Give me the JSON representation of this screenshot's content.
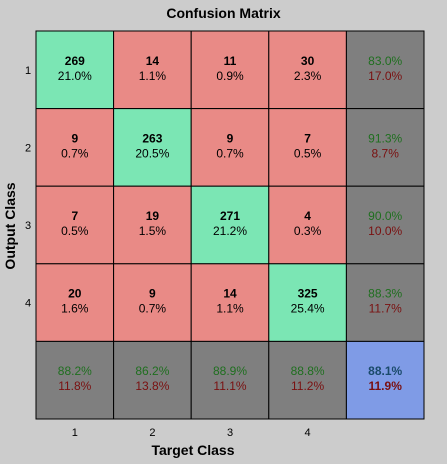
{
  "chart_data": {
    "type": "heatmap",
    "title": "Confusion Matrix",
    "xlabel": "Target Class",
    "ylabel": "Output Class",
    "x_ticks": [
      "1",
      "2",
      "3",
      "4"
    ],
    "y_ticks": [
      "1",
      "2",
      "3",
      "4"
    ],
    "counts": [
      [
        269,
        14,
        11,
        30
      ],
      [
        9,
        263,
        9,
        7
      ],
      [
        7,
        19,
        271,
        4
      ],
      [
        20,
        9,
        14,
        325
      ]
    ],
    "cell_percents": [
      [
        "21.0%",
        "1.1%",
        "0.9%",
        "2.3%"
      ],
      [
        "0.7%",
        "20.5%",
        "0.7%",
        "0.5%"
      ],
      [
        "0.5%",
        "1.5%",
        "21.2%",
        "0.3%"
      ],
      [
        "1.6%",
        "0.7%",
        "1.1%",
        "25.4%"
      ]
    ],
    "row_summary": [
      {
        "correct": "83.0%",
        "error": "17.0%"
      },
      {
        "correct": "91.3%",
        "error": "8.7%"
      },
      {
        "correct": "90.0%",
        "error": "10.0%"
      },
      {
        "correct": "88.3%",
        "error": "11.7%"
      }
    ],
    "col_summary": [
      {
        "correct": "88.2%",
        "error": "11.8%"
      },
      {
        "correct": "86.2%",
        "error": "13.8%"
      },
      {
        "correct": "88.9%",
        "error": "11.1%"
      },
      {
        "correct": "88.8%",
        "error": "11.2%"
      }
    ],
    "overall": {
      "correct": "88.1%",
      "error": "11.9%"
    },
    "colors": {
      "diagonal": "#7be6b4",
      "off_diagonal": "#e98a86",
      "summary": "#7f7f7f",
      "overall": "#7f9be6",
      "correct_text": "#1f6f1f",
      "error_text": "#7a1010"
    }
  }
}
